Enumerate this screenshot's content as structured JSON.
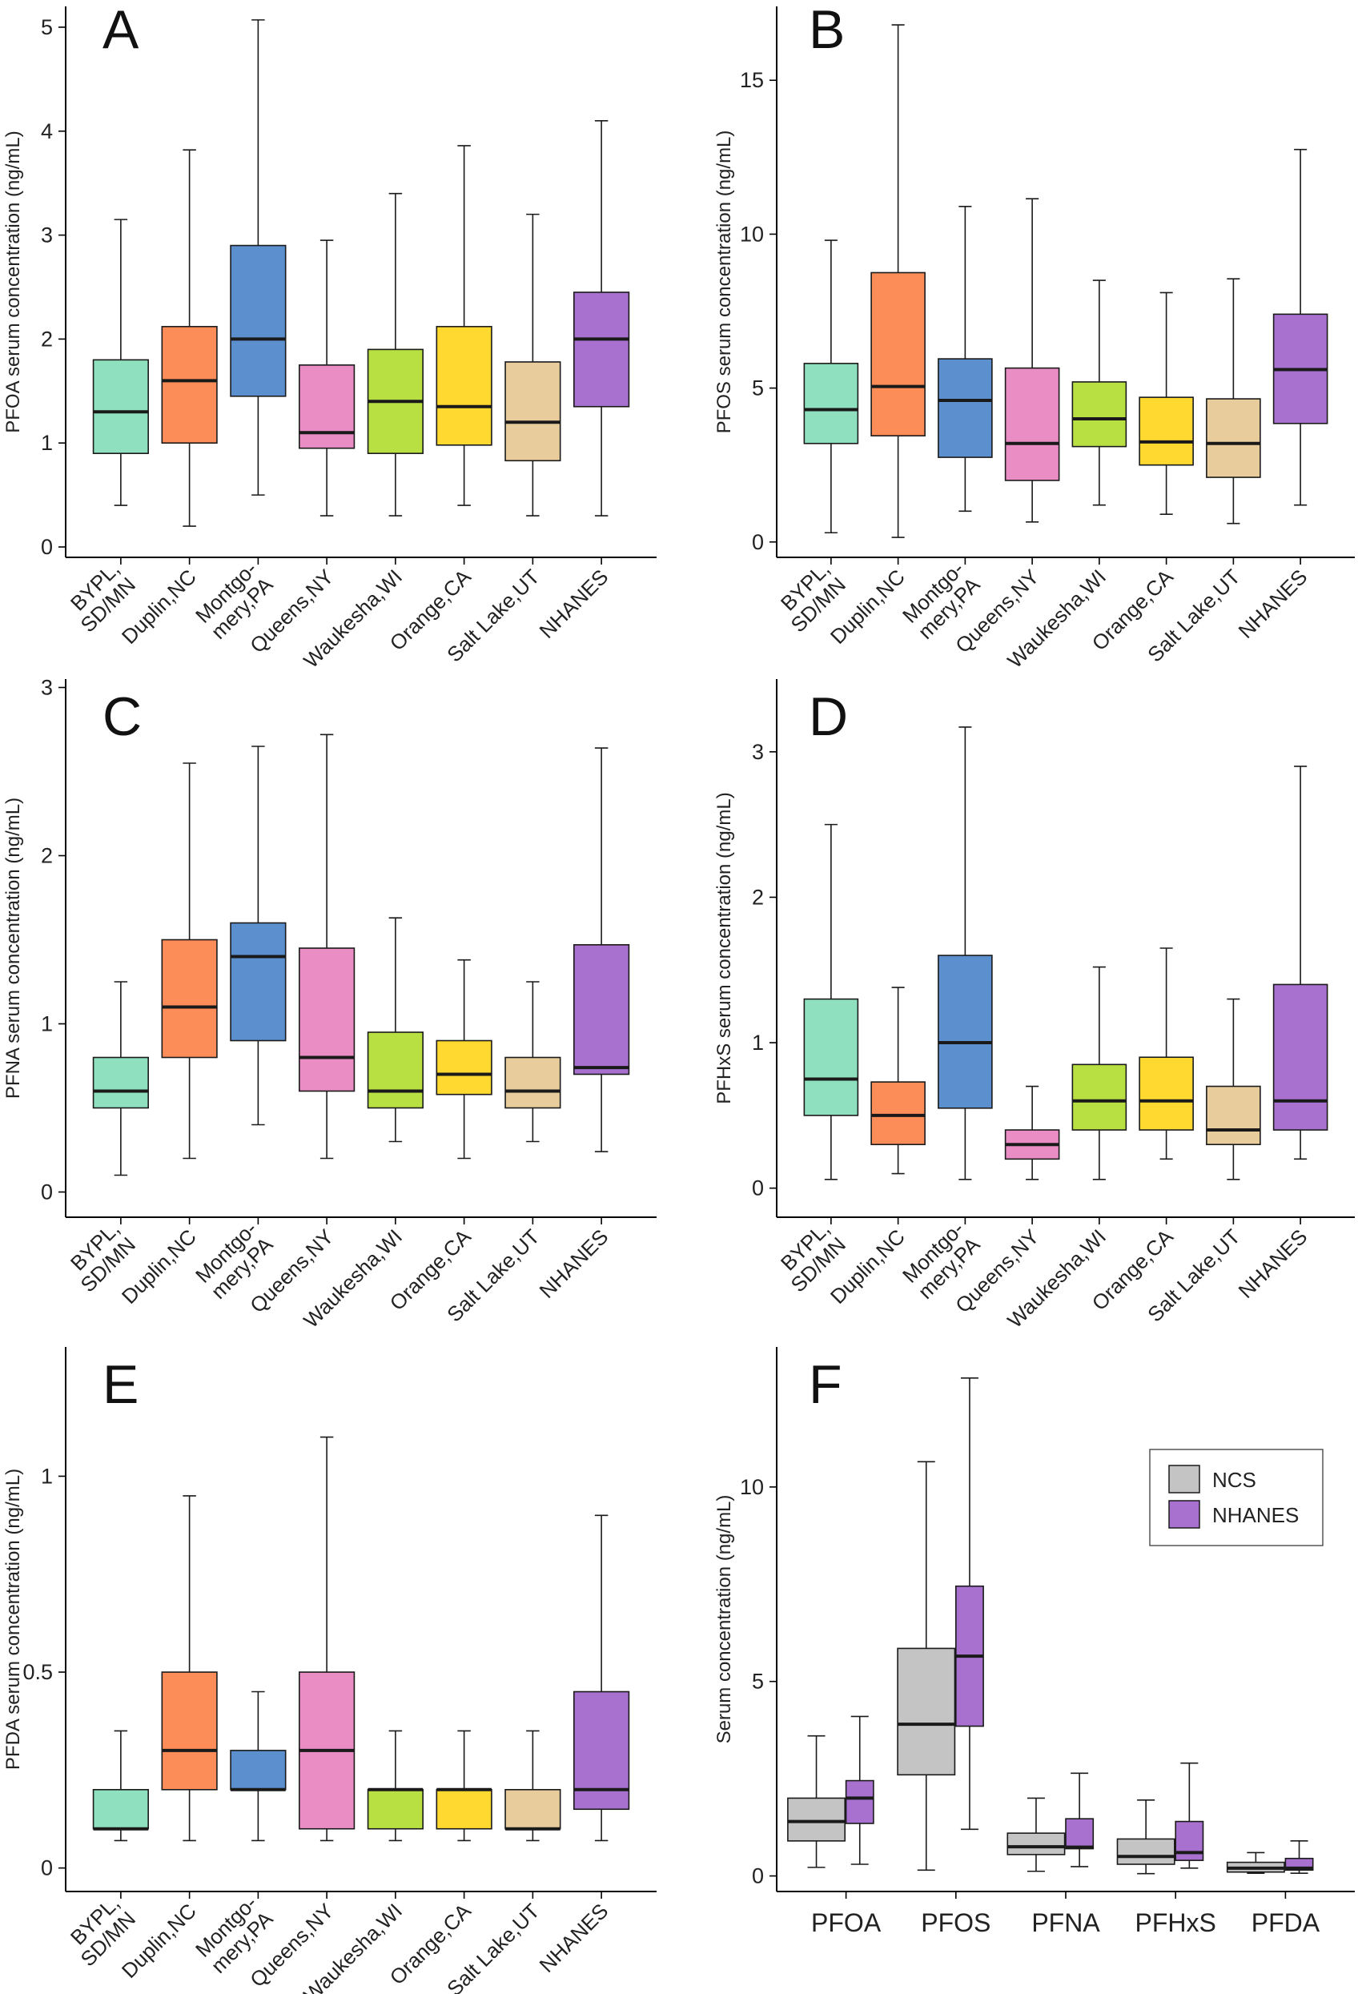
{
  "chart_data": [
    {
      "panel": "A",
      "type": "boxplot",
      "ylabel": "PFOA serum concentration (ng/mL)",
      "ylim": [
        -0.1,
        5.2
      ],
      "yticks": [
        0,
        1,
        2,
        3,
        4,
        5
      ],
      "categories": [
        [
          "BYPL,",
          "SD/MN"
        ],
        [
          "Duplin,NC"
        ],
        [
          "Montgo-",
          "mery,PA"
        ],
        [
          "Queens,NY"
        ],
        [
          "Waukesha,WI"
        ],
        [
          "Orange,CA"
        ],
        [
          "Salt Lake,UT"
        ],
        [
          "NHANES"
        ]
      ],
      "boxes": [
        {
          "min": 0.4,
          "q1": 0.9,
          "median": 1.3,
          "q3": 1.8,
          "max": 3.15,
          "color": "#8ee0be"
        },
        {
          "min": 0.2,
          "q1": 1.0,
          "median": 1.6,
          "q3": 2.12,
          "max": 3.82,
          "color": "#fc8d59"
        },
        {
          "min": 0.5,
          "q1": 1.45,
          "median": 2.0,
          "q3": 2.9,
          "max": 5.07,
          "color": "#5b8fce"
        },
        {
          "min": 0.3,
          "q1": 0.95,
          "median": 1.1,
          "q3": 1.75,
          "max": 2.95,
          "color": "#e98dc4"
        },
        {
          "min": 0.3,
          "q1": 0.9,
          "median": 1.4,
          "q3": 1.9,
          "max": 3.4,
          "color": "#b9e043"
        },
        {
          "min": 0.4,
          "q1": 0.98,
          "median": 1.35,
          "q3": 2.12,
          "max": 3.86,
          "color": "#ffd92f"
        },
        {
          "min": 0.3,
          "q1": 0.83,
          "median": 1.2,
          "q3": 1.78,
          "max": 3.2,
          "color": "#e8cc9c"
        },
        {
          "min": 0.3,
          "q1": 1.35,
          "median": 2.0,
          "q3": 2.45,
          "max": 4.1,
          "color": "#a871d0"
        }
      ]
    },
    {
      "panel": "B",
      "type": "boxplot",
      "ylabel": "PFOS serum concentration (ng/mL)",
      "ylim": [
        -0.5,
        17.4
      ],
      "yticks": [
        0,
        5,
        10,
        15
      ],
      "categories": [
        [
          "BYPL,",
          "SD/MN"
        ],
        [
          "Duplin,NC"
        ],
        [
          "Montgo-",
          "mery,PA"
        ],
        [
          "Queens,NY"
        ],
        [
          "Waukesha,WI"
        ],
        [
          "Orange,CA"
        ],
        [
          "Salt Lake,UT"
        ],
        [
          "NHANES"
        ]
      ],
      "boxes": [
        {
          "min": 0.3,
          "q1": 3.2,
          "median": 4.3,
          "q3": 5.8,
          "max": 9.8,
          "color": "#8ee0be"
        },
        {
          "min": 0.15,
          "q1": 3.45,
          "median": 5.05,
          "q3": 8.75,
          "max": 16.8,
          "color": "#fc8d59"
        },
        {
          "min": 1.0,
          "q1": 2.75,
          "median": 4.6,
          "q3": 5.95,
          "max": 10.9,
          "color": "#5b8fce"
        },
        {
          "min": 0.65,
          "q1": 2.0,
          "median": 3.2,
          "q3": 5.65,
          "max": 11.15,
          "color": "#e98dc4"
        },
        {
          "min": 1.2,
          "q1": 3.1,
          "median": 4.0,
          "q3": 5.2,
          "max": 8.5,
          "color": "#b9e043"
        },
        {
          "min": 0.9,
          "q1": 2.5,
          "median": 3.25,
          "q3": 4.7,
          "max": 8.1,
          "color": "#ffd92f"
        },
        {
          "min": 0.6,
          "q1": 2.1,
          "median": 3.2,
          "q3": 4.65,
          "max": 8.55,
          "color": "#e8cc9c"
        },
        {
          "min": 1.2,
          "q1": 3.85,
          "median": 5.6,
          "q3": 7.4,
          "max": 12.75,
          "color": "#a871d0"
        }
      ]
    },
    {
      "panel": "C",
      "type": "boxplot",
      "ylabel": "PFNA serum concentration (ng/mL)",
      "ylim": [
        -0.15,
        3.05
      ],
      "yticks": [
        0,
        1,
        2,
        3
      ],
      "categories": [
        [
          "BYPL,",
          "SD/MN"
        ],
        [
          "Duplin,NC"
        ],
        [
          "Montgo-",
          "mery,PA"
        ],
        [
          "Queens,NY"
        ],
        [
          "Waukesha,WI"
        ],
        [
          "Orange,CA"
        ],
        [
          "Salt Lake,UT"
        ],
        [
          "NHANES"
        ]
      ],
      "boxes": [
        {
          "min": 0.1,
          "q1": 0.5,
          "median": 0.6,
          "q3": 0.8,
          "max": 1.25,
          "color": "#8ee0be"
        },
        {
          "min": 0.2,
          "q1": 0.8,
          "median": 1.1,
          "q3": 1.5,
          "max": 2.55,
          "color": "#fc8d59"
        },
        {
          "min": 0.4,
          "q1": 0.9,
          "median": 1.4,
          "q3": 1.6,
          "max": 2.65,
          "color": "#5b8fce"
        },
        {
          "min": 0.2,
          "q1": 0.6,
          "median": 0.8,
          "q3": 1.45,
          "max": 2.72,
          "color": "#e98dc4"
        },
        {
          "min": 0.3,
          "q1": 0.5,
          "median": 0.6,
          "q3": 0.95,
          "max": 1.63,
          "color": "#b9e043"
        },
        {
          "min": 0.2,
          "q1": 0.58,
          "median": 0.7,
          "q3": 0.9,
          "max": 1.38,
          "color": "#ffd92f"
        },
        {
          "min": 0.3,
          "q1": 0.5,
          "median": 0.6,
          "q3": 0.8,
          "max": 1.25,
          "color": "#e8cc9c"
        },
        {
          "min": 0.24,
          "q1": 0.7,
          "median": 0.74,
          "q3": 1.47,
          "max": 2.64,
          "color": "#a871d0"
        }
      ]
    },
    {
      "panel": "D",
      "type": "boxplot",
      "ylabel": "PFHxS serum concentration (ng/mL)",
      "ylim": [
        -0.2,
        3.5
      ],
      "yticks": [
        0,
        1,
        2,
        3
      ],
      "categories": [
        [
          "BYPL,",
          "SD/MN"
        ],
        [
          "Duplin,NC"
        ],
        [
          "Montgo-",
          "mery,PA"
        ],
        [
          "Queens,NY"
        ],
        [
          "Waukesha,WI"
        ],
        [
          "Orange,CA"
        ],
        [
          "Salt Lake,UT"
        ],
        [
          "NHANES"
        ]
      ],
      "boxes": [
        {
          "min": 0.06,
          "q1": 0.5,
          "median": 0.75,
          "q3": 1.3,
          "max": 2.5,
          "color": "#8ee0be"
        },
        {
          "min": 0.1,
          "q1": 0.3,
          "median": 0.5,
          "q3": 0.73,
          "max": 1.38,
          "color": "#fc8d59"
        },
        {
          "min": 0.06,
          "q1": 0.55,
          "median": 1.0,
          "q3": 1.6,
          "max": 3.17,
          "color": "#5b8fce"
        },
        {
          "min": 0.06,
          "q1": 0.2,
          "median": 0.3,
          "q3": 0.4,
          "max": 0.7,
          "color": "#e98dc4"
        },
        {
          "min": 0.06,
          "q1": 0.4,
          "median": 0.6,
          "q3": 0.85,
          "max": 1.52,
          "color": "#b9e043"
        },
        {
          "min": 0.2,
          "q1": 0.4,
          "median": 0.6,
          "q3": 0.9,
          "max": 1.65,
          "color": "#ffd92f"
        },
        {
          "min": 0.06,
          "q1": 0.3,
          "median": 0.4,
          "q3": 0.7,
          "max": 1.3,
          "color": "#e8cc9c"
        },
        {
          "min": 0.2,
          "q1": 0.4,
          "median": 0.6,
          "q3": 1.4,
          "max": 2.9,
          "color": "#a871d0"
        }
      ]
    },
    {
      "panel": "E",
      "type": "boxplot",
      "ylabel": "PFDA serum concentration (ng/mL)",
      "ylim": [
        -0.06,
        1.33
      ],
      "yticks": [
        0,
        0.5,
        1
      ],
      "yticklabels": [
        "0",
        "0.5",
        "1"
      ],
      "categories": [
        [
          "BYPL,",
          "SD/MN"
        ],
        [
          "Duplin,NC"
        ],
        [
          "Montgo-",
          "mery,PA"
        ],
        [
          "Queens,NY"
        ],
        [
          "Waukesha,WI"
        ],
        [
          "Orange,CA"
        ],
        [
          "Salt Lake,UT"
        ],
        [
          "NHANES"
        ]
      ],
      "boxes": [
        {
          "min": 0.07,
          "q1": 0.1,
          "median": 0.1,
          "q3": 0.2,
          "max": 0.35,
          "color": "#8ee0be"
        },
        {
          "min": 0.07,
          "q1": 0.2,
          "median": 0.3,
          "q3": 0.5,
          "max": 0.95,
          "color": "#fc8d59"
        },
        {
          "min": 0.07,
          "q1": 0.2,
          "median": 0.2,
          "q3": 0.3,
          "max": 0.45,
          "color": "#5b8fce"
        },
        {
          "min": 0.07,
          "q1": 0.1,
          "median": 0.3,
          "q3": 0.5,
          "max": 1.1,
          "color": "#e98dc4"
        },
        {
          "min": 0.07,
          "q1": 0.1,
          "median": 0.2,
          "q3": 0.2,
          "max": 0.35,
          "color": "#b9e043"
        },
        {
          "min": 0.07,
          "q1": 0.1,
          "median": 0.2,
          "q3": 0.2,
          "max": 0.35,
          "color": "#ffd92f"
        },
        {
          "min": 0.07,
          "q1": 0.1,
          "median": 0.1,
          "q3": 0.2,
          "max": 0.35,
          "color": "#e8cc9c"
        },
        {
          "min": 0.07,
          "q1": 0.15,
          "median": 0.2,
          "q3": 0.45,
          "max": 0.9,
          "color": "#a871d0"
        }
      ]
    },
    {
      "panel": "F",
      "type": "grouped-boxplot",
      "ylabel": "Serum concentration (ng/mL)",
      "ylim": [
        -0.4,
        13.6
      ],
      "yticks": [
        0,
        5,
        10
      ],
      "categories": [
        "PFOA",
        "PFOS",
        "PFNA",
        "PFHxS",
        "PFDA"
      ],
      "legend": {
        "position": "top-right",
        "entries": [
          {
            "name": "NCS",
            "color": "#c4c4c4"
          },
          {
            "name": "NHANES",
            "color": "#a871d0"
          }
        ]
      },
      "series": [
        {
          "name": "NCS",
          "color": "#c4c4c4",
          "boxes": [
            {
              "min": 0.22,
              "q1": 0.9,
              "median": 1.4,
              "q3": 2.0,
              "max": 3.6
            },
            {
              "min": 0.15,
              "q1": 2.6,
              "median": 3.9,
              "q3": 5.85,
              "max": 10.65
            },
            {
              "min": 0.12,
              "q1": 0.55,
              "median": 0.75,
              "q3": 1.1,
              "max": 2.0
            },
            {
              "min": 0.06,
              "q1": 0.3,
              "median": 0.5,
              "q3": 0.95,
              "max": 1.95
            },
            {
              "min": 0.07,
              "q1": 0.1,
              "median": 0.2,
              "q3": 0.35,
              "max": 0.6
            }
          ]
        },
        {
          "name": "NHANES",
          "color": "#a871d0",
          "boxes": [
            {
              "min": 0.3,
              "q1": 1.35,
              "median": 2.0,
              "q3": 2.45,
              "max": 4.1
            },
            {
              "min": 1.2,
              "q1": 3.85,
              "median": 5.65,
              "q3": 7.45,
              "max": 12.8
            },
            {
              "min": 0.24,
              "q1": 0.7,
              "median": 0.74,
              "q3": 1.47,
              "max": 2.64
            },
            {
              "min": 0.2,
              "q1": 0.4,
              "median": 0.6,
              "q3": 1.4,
              "max": 2.9
            },
            {
              "min": 0.07,
              "q1": 0.15,
              "median": 0.2,
              "q3": 0.45,
              "max": 0.9
            }
          ]
        }
      ]
    }
  ]
}
